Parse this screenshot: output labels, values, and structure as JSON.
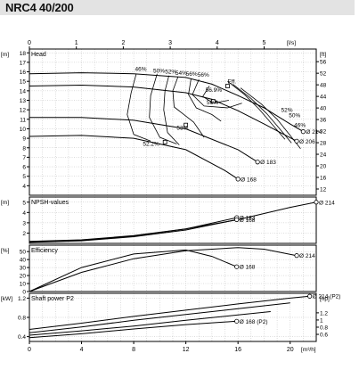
{
  "title": "NRC4 40/200",
  "colors": {
    "axis": "#000000",
    "grid": "#aaaaaa",
    "curve": "#000000",
    "title_bg": "#e3e3e3"
  },
  "axes": {
    "flow_ls": {
      "unit": "[l/s]",
      "ticks": [
        0,
        1,
        2,
        3,
        4,
        5
      ],
      "range": [
        0,
        6.11
      ]
    },
    "flow_m3h": {
      "unit": "[m³/h]",
      "ticks": [
        0,
        4,
        8,
        12,
        16,
        20
      ],
      "range": [
        0,
        22
      ]
    }
  },
  "chart_data": [
    {
      "type": "line",
      "panel": "head",
      "title": "Head",
      "ylabel_left": "[m]",
      "ylabel_right": "[ft]",
      "x_unit": "m³/h",
      "ylim": [
        3,
        18.4
      ],
      "left_ticks": [
        4,
        5,
        6,
        7,
        8,
        9,
        10,
        11,
        12,
        13,
        14,
        15,
        16,
        17,
        18
      ],
      "right_ticks": [
        12,
        16,
        20,
        24,
        28,
        32,
        36,
        40,
        44,
        48,
        52,
        56
      ],
      "grid": true,
      "series": [
        {
          "name": "214",
          "x": [
            0,
            4,
            8,
            12,
            14,
            16,
            18,
            20,
            21
          ],
          "y": [
            15.8,
            15.9,
            15.8,
            15.4,
            14.7,
            13.5,
            12.2,
            10.5,
            9.7
          ],
          "label": "214"
        },
        {
          "name": "206",
          "x": [
            0,
            4,
            8,
            12,
            14,
            16,
            18,
            20.5
          ],
          "y": [
            14.5,
            14.6,
            14.4,
            13.8,
            13.1,
            11.9,
            10.5,
            8.7
          ],
          "label": "206"
        },
        {
          "name": "183",
          "x": [
            0,
            4,
            8,
            12,
            16,
            17.5
          ],
          "y": [
            11.2,
            11.2,
            10.9,
            10.0,
            7.8,
            6.5
          ],
          "label": "183"
        },
        {
          "name": "168",
          "x": [
            0,
            4,
            8,
            12,
            15,
            16
          ],
          "y": [
            9.2,
            9.3,
            9.0,
            7.8,
            5.6,
            4.7
          ],
          "label": "168"
        }
      ],
      "efficiency_isolines": [
        {
          "label": "46%",
          "x": [
            8.2,
            7.8,
            7.5,
            8.0,
            9.3
          ],
          "y": [
            15.8,
            13.8,
            11.5,
            9.4,
            8.7
          ]
        },
        {
          "label": "50%",
          "x": [
            9.8,
            9.3,
            9.2,
            10.0,
            11.3
          ],
          "y": [
            15.8,
            13.5,
            11.2,
            9.1,
            8.4
          ]
        },
        {
          "label": "52%",
          "x": [
            10.7,
            10.4,
            10.3,
            10.6,
            11.5
          ],
          "y": [
            15.6,
            14.0,
            12.0,
            9.6,
            8.3
          ]
        },
        {
          "label": "54%",
          "x": [
            11.4,
            11.0,
            11.1,
            12.6,
            13.4
          ],
          "y": [
            15.5,
            14.0,
            12.3,
            10.7,
            9.1
          ]
        },
        {
          "label": "56%",
          "x": [
            12.4,
            12.2,
            12.8,
            14.0,
            14.7
          ],
          "y": [
            15.3,
            13.6,
            12.2,
            11.5,
            10.8
          ]
        },
        {
          "label": "56%",
          "x": [
            13.0,
            12.5,
            13.4,
            15.2,
            16.3
          ],
          "y": [
            15.2,
            13.6,
            12.4,
            12.2,
            12.7
          ]
        },
        {
          "label": "56.9%",
          "x": [
            13.8,
            13.3,
            14.1,
            15.3
          ],
          "y": [
            14.5,
            13.4,
            12.7,
            13.0
          ]
        },
        {
          "label": "52%",
          "x": [
            15.2,
            16.5,
            17.6,
            18.6,
            19.6
          ],
          "y": [
            15.0,
            13.6,
            12.1,
            10.5,
            8.9
          ]
        },
        {
          "label": "50%",
          "x": [
            15.6,
            17.0,
            18.2,
            19.2,
            20.1
          ],
          "y": [
            14.7,
            13.2,
            11.6,
            10.0,
            8.5
          ]
        },
        {
          "label": "46%",
          "x": [
            16.2,
            17.8,
            19.0,
            20.0,
            20.8
          ],
          "y": [
            14.3,
            12.6,
            11.0,
            9.3,
            7.9
          ]
        }
      ],
      "annotations": [
        {
          "text": "Eff.",
          "x": 15.2,
          "y": 14.8
        },
        {
          "text": "56.9%",
          "x": 13.5,
          "y": 13.9
        },
        {
          "text": "56%",
          "x": 13.6,
          "y": 12.6
        },
        {
          "text": "53%",
          "x": 11.3,
          "y": 9.9
        },
        {
          "text": "52.2%",
          "x": 8.7,
          "y": 8.2
        },
        {
          "text": "52%",
          "x": 19.3,
          "y": 11.8
        },
        {
          "text": "50%",
          "x": 19.9,
          "y": 11.2
        },
        {
          "text": "46%",
          "x": 20.3,
          "y": 10.2
        },
        {
          "text": "46%",
          "x": 8.1,
          "y": 16.1
        },
        {
          "text": "50%",
          "x": 9.5,
          "y": 15.9
        },
        {
          "text": "52%",
          "x": 10.4,
          "y": 15.8
        },
        {
          "text": "54%",
          "x": 11.2,
          "y": 15.7
        },
        {
          "text": "56%",
          "x": 12.0,
          "y": 15.6
        },
        {
          "text": "56%",
          "x": 12.9,
          "y": 15.5
        }
      ],
      "markers": [
        {
          "x": 15.2,
          "y": 14.5
        },
        {
          "x": 14.1,
          "y": 12.9
        },
        {
          "x": 12.0,
          "y": 10.4
        },
        {
          "x": 10.4,
          "y": 8.6
        }
      ]
    },
    {
      "type": "line",
      "panel": "npsh",
      "title": "NPSH-values",
      "ylabel_left": "[m]",
      "ylim": [
        1,
        5.5
      ],
      "left_ticks": [
        2,
        3,
        4,
        5
      ],
      "grid": true,
      "series": [
        {
          "name": "214",
          "x": [
            0,
            4,
            8,
            12,
            16,
            20,
            22
          ],
          "y": [
            1.2,
            1.35,
            1.75,
            2.4,
            3.3,
            4.5,
            5.0
          ],
          "label": "214"
        },
        {
          "name": "183",
          "x": [
            0,
            4,
            8,
            12,
            15.9
          ],
          "y": [
            1.15,
            1.3,
            1.7,
            2.4,
            3.5
          ],
          "label": "183"
        },
        {
          "name": "168",
          "x": [
            0,
            4,
            8,
            12,
            15.9
          ],
          "y": [
            1.1,
            1.25,
            1.65,
            2.3,
            3.3
          ],
          "label": "168"
        }
      ]
    },
    {
      "type": "line",
      "panel": "efficiency",
      "title": "Efficiency",
      "ylabel_left": "[%]",
      "ylim": [
        0,
        58
      ],
      "left_ticks": [
        0,
        10,
        20,
        30,
        40,
        50
      ],
      "grid": true,
      "series": [
        {
          "name": "214",
          "x": [
            0,
            4,
            8,
            12,
            16,
            18,
            20.5
          ],
          "y": [
            0,
            24,
            41,
            51,
            55,
            53,
            45
          ],
          "label": "214"
        },
        {
          "name": "168",
          "x": [
            0,
            4,
            8,
            12,
            14,
            15.9
          ],
          "y": [
            0,
            30,
            47,
            52,
            44,
            31
          ],
          "label": "168"
        }
      ]
    },
    {
      "type": "line",
      "panel": "power",
      "title": "Shaft power P2",
      "ylabel_left": "[kW]",
      "ylabel_right": "[hp]",
      "ylim": [
        0.3,
        1.3
      ],
      "left_ticks": [
        0.4,
        0.8,
        1.2
      ],
      "right_ticks": [
        0.4,
        0.6,
        0.8,
        1.0,
        1.2
      ],
      "grid": true,
      "series": [
        {
          "name": "214 (P2)",
          "x": [
            0,
            4,
            8,
            12,
            16,
            20,
            21.5
          ],
          "y": [
            0.55,
            0.68,
            0.82,
            0.95,
            1.08,
            1.2,
            1.24
          ],
          "label": "214 (P2)"
        },
        {
          "name": "",
          "x": [
            0,
            4,
            8,
            12,
            16,
            20
          ],
          "y": [
            0.48,
            0.6,
            0.74,
            0.86,
            0.98,
            1.1
          ]
        },
        {
          "name": "",
          "x": [
            0,
            4,
            8,
            12,
            16,
            18.5
          ],
          "y": [
            0.43,
            0.52,
            0.62,
            0.74,
            0.85,
            0.92
          ]
        },
        {
          "name": "168 (P2)",
          "x": [
            0,
            4,
            8,
            12,
            15.9
          ],
          "y": [
            0.38,
            0.46,
            0.56,
            0.65,
            0.72
          ],
          "label": "168 (P2)"
        }
      ]
    }
  ]
}
